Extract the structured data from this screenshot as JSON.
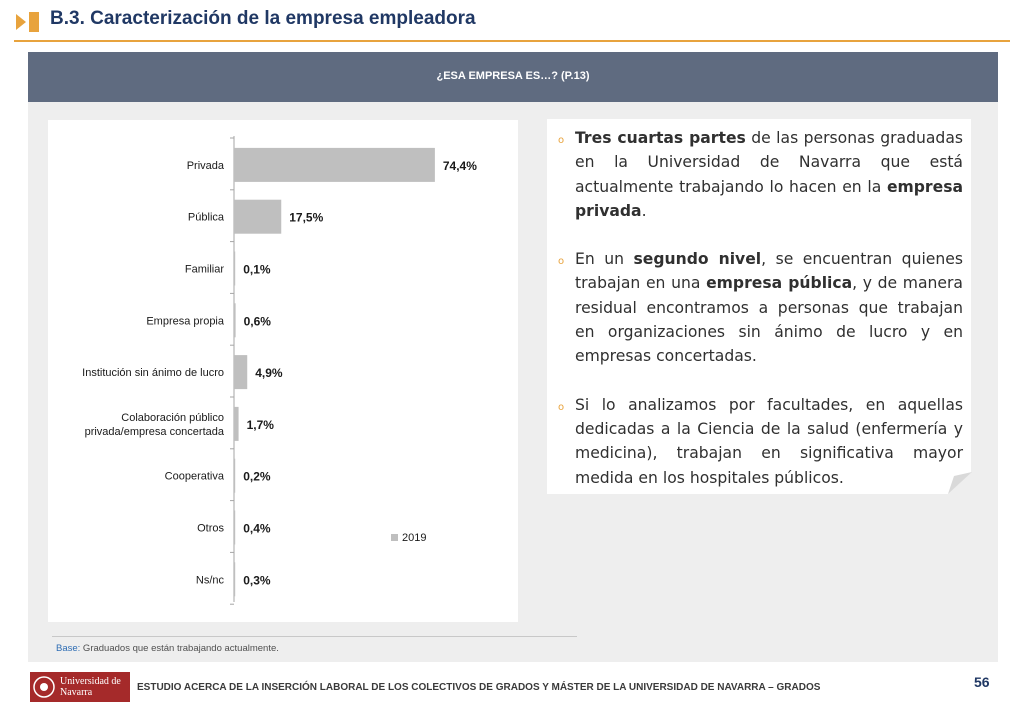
{
  "header": {
    "title": "B.3. Caracterización de la empresa empleadora"
  },
  "banner": {
    "text": "¿ESA EMPRESA ES…? (P.13)"
  },
  "chart_data": {
    "type": "bar",
    "orientation": "horizontal",
    "categories": [
      "Privada",
      "Pública",
      "Familiar",
      "Empresa propia",
      "Institución sin ánimo de lucro",
      "Colaboración público privada/empresa concertada",
      "Cooperativa",
      "Otros",
      "Ns/nc"
    ],
    "category_lines": [
      [
        "Privada"
      ],
      [
        "Pública"
      ],
      [
        "Familiar"
      ],
      [
        "Empresa propia"
      ],
      [
        "Institución sin ánimo de lucro"
      ],
      [
        "Colaboración público",
        "privada/empresa concertada"
      ],
      [
        "Cooperativa"
      ],
      [
        "Otros"
      ],
      [
        "Ns/nc"
      ]
    ],
    "series": [
      {
        "name": "2019",
        "values": [
          74.4,
          17.5,
          0.1,
          0.6,
          4.9,
          1.7,
          0.2,
          0.4,
          0.3
        ]
      }
    ],
    "value_labels": [
      "74,4%",
      "17,5%",
      "0,1%",
      "0,6%",
      "4,9%",
      "1,7%",
      "0,2%",
      "0,4%",
      "0,3%"
    ],
    "xlim": [
      0,
      100
    ],
    "legend": "2019",
    "legend_position": "bottom-right",
    "bar_color": "#bfbfbf",
    "grid": false
  },
  "bullets": [
    {
      "segments": [
        {
          "t": "Tres cuartas partes",
          "b": true
        },
        {
          "t": " de las personas graduadas en la Universidad de Navarra que está actualmente trabajando lo hacen en la ",
          "b": false
        },
        {
          "t": "empresa privada",
          "b": true
        },
        {
          "t": ".",
          "b": false
        }
      ]
    },
    {
      "segments": [
        {
          "t": "En un ",
          "b": false
        },
        {
          "t": "segundo nivel",
          "b": true
        },
        {
          "t": ", se encuentran quienes trabajan en una ",
          "b": false
        },
        {
          "t": "empresa pública",
          "b": true
        },
        {
          "t": ", y de manera residual encontramos a personas que trabajan en organizaciones sin ánimo de lucro y en empresas concertadas.",
          "b": false
        }
      ]
    },
    {
      "segments": [
        {
          "t": "Si lo analizamos por facultades, en aquellas dedicadas a la Ciencia de la salud (enfermería y medicina), trabajan en significativa mayor medida en los hospitales públicos.",
          "b": false
        }
      ]
    }
  ],
  "base_note": {
    "label": "Base:",
    "text": " Graduados que están trabajando actualmente."
  },
  "footer": {
    "logo_text": "Universidad de Navarra",
    "text": "ESTUDIO ACERCA DE LA INSERCIÓN LABORAL DE LOS COLECTIVOS DE GRADOS Y MÁSTER DE LA UNIVERSIDAD DE NAVARRA – GRADOS",
    "page_number": "56"
  },
  "colors": {
    "accent": "#e8a33d",
    "title": "#203864",
    "banner": "#5f6b80",
    "bullet": "#e8a33d"
  }
}
